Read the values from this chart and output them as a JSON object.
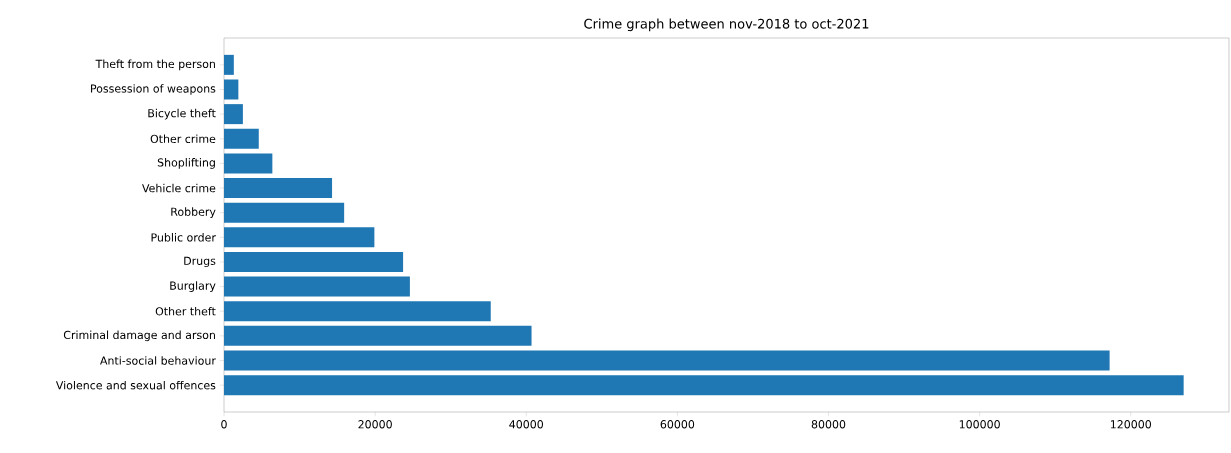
{
  "chart_data": {
    "type": "bar",
    "orientation": "horizontal",
    "title": "Crime graph between nov-2018 to oct-2021",
    "categories": [
      "Theft from the person",
      "Possession of weapons",
      "Bicycle theft",
      "Other crime",
      "Shoplifting",
      "Vehicle crime",
      "Robbery",
      "Public order",
      "Drugs",
      "Burglary",
      "Other theft",
      "Criminal damage and arson",
      "Anti-social behaviour",
      "Violence and sexual offences"
    ],
    "values": [
      1300,
      1900,
      2500,
      4600,
      6400,
      14300,
      15900,
      19900,
      23700,
      24600,
      35300,
      40700,
      117200,
      127000
    ],
    "color": "#1f77b4",
    "xlim": [
      0,
      133000
    ],
    "xticks": [
      0,
      20000,
      40000,
      60000,
      80000,
      100000,
      120000
    ],
    "grid": false
  }
}
